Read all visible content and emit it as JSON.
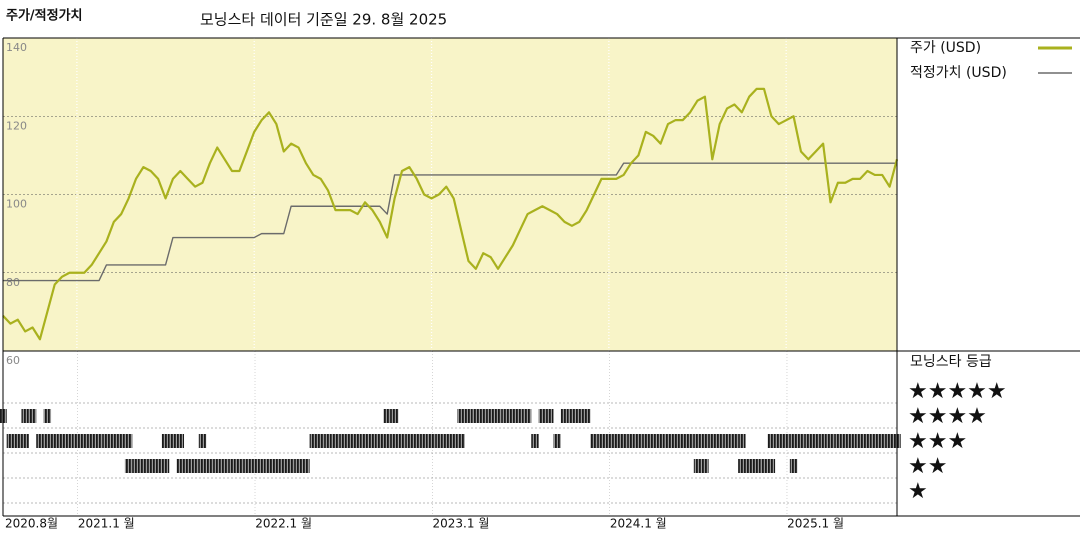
{
  "chart_data": {
    "type": "line",
    "title": "주가/적정가치",
    "subtitle": "모닝스타 데이터 기준일 29. 8월 2025",
    "categories": [
      "2020.8월",
      null,
      null,
      null,
      null,
      null,
      null,
      null,
      null,
      null,
      "2021.1 월",
      null,
      null,
      null,
      null,
      null,
      null,
      null,
      null,
      null,
      null,
      null,
      null,
      null,
      null,
      null,
      null,
      null,
      null,
      null,
      null,
      null,
      null,
      null,
      "2022.1 월",
      null,
      null,
      null,
      null,
      null,
      null,
      null,
      null,
      null,
      null,
      null,
      null,
      null,
      null,
      null,
      null,
      null,
      null,
      null,
      null,
      null,
      null,
      null,
      "2023.1 월",
      null,
      null,
      null,
      null,
      null,
      null,
      null,
      null,
      null,
      null,
      null,
      null,
      null,
      null,
      null,
      null,
      null,
      null,
      null,
      null,
      null,
      null,
      null,
      "2024.1 월",
      null,
      null,
      null,
      null,
      null,
      null,
      null,
      null,
      null,
      null,
      null,
      null,
      null,
      null,
      null,
      null,
      null,
      null,
      null,
      null,
      null,
      null,
      null,
      "2025.1 월",
      null,
      null,
      null,
      null,
      null,
      null,
      null,
      null,
      null,
      null,
      null,
      null,
      null,
      null,
      null
    ],
    "series": [
      {
        "name": "주가 (USD)",
        "color": "#a9b11e",
        "values": [
          69,
          67,
          68,
          65,
          66,
          63,
          70,
          77,
          79,
          80,
          80,
          80,
          82,
          85,
          88,
          93,
          95,
          99,
          104,
          107,
          106,
          104,
          99,
          104,
          106,
          104,
          102,
          103,
          108,
          112,
          109,
          106,
          106,
          111,
          116,
          119,
          121,
          118,
          111,
          113,
          112,
          108,
          105,
          104,
          101,
          96,
          96,
          96,
          95,
          98,
          96,
          93,
          89,
          99,
          106,
          107,
          104,
          100,
          99,
          100,
          102,
          99,
          91,
          83,
          81,
          85,
          84,
          81,
          84,
          87,
          91,
          95,
          96,
          97,
          96,
          95,
          93,
          92,
          93,
          96,
          100,
          104,
          104,
          104,
          105,
          108,
          110,
          116,
          115,
          113,
          118,
          119,
          119,
          121,
          124,
          125,
          109,
          118,
          122,
          123,
          121,
          125,
          127,
          127,
          120,
          118,
          119,
          120,
          111,
          109,
          111,
          113,
          98,
          103,
          103,
          104,
          104,
          106,
          105,
          105,
          102,
          109
        ]
      },
      {
        "name": "적정가치 (USD)",
        "color": "#6b6b6b",
        "values": [
          78,
          78,
          78,
          78,
          78,
          78,
          78,
          78,
          78,
          78,
          78,
          78,
          78,
          78,
          82,
          82,
          82,
          82,
          82,
          82,
          82,
          82,
          82,
          89,
          89,
          89,
          89,
          89,
          89,
          89,
          89,
          89,
          89,
          89,
          89,
          90,
          90,
          90,
          90,
          97,
          97,
          97,
          97,
          97,
          97,
          97,
          97,
          97,
          97,
          97,
          97,
          97,
          95,
          105,
          105,
          105,
          105,
          105,
          105,
          105,
          105,
          105,
          105,
          105,
          105,
          105,
          105,
          105,
          105,
          105,
          105,
          105,
          105,
          105,
          105,
          105,
          105,
          105,
          105,
          105,
          105,
          105,
          105,
          105,
          108,
          108,
          108,
          108,
          108,
          108,
          108,
          108,
          108,
          108,
          108,
          108,
          108,
          108,
          108,
          108,
          108,
          108,
          108,
          108,
          108,
          108,
          108,
          108,
          108,
          108,
          108,
          108,
          108,
          108,
          108,
          108,
          108,
          108,
          108,
          108,
          108,
          108
        ]
      }
    ],
    "ylim": [
      60,
      140
    ],
    "yticks": [
      60,
      80,
      100,
      120,
      140
    ],
    "grid": true,
    "background": "#f8f4c8",
    "ratings": {
      "title": "모닝스타 등급",
      "levels": [
        {
          "stars": 5,
          "label": "★★★★★"
        },
        {
          "stars": 4,
          "label": "★★★★"
        },
        {
          "stars": 3,
          "label": "★★★"
        },
        {
          "stars": 2,
          "label": "★★"
        },
        {
          "stars": 1,
          "label": "★"
        }
      ],
      "values": [
        [
          4
        ],
        [
          3
        ],
        [
          3
        ],
        [
          4,
          3
        ],
        [
          4
        ],
        [
          3
        ],
        [
          4,
          3
        ],
        [
          3
        ],
        [
          3
        ],
        [
          3
        ],
        [
          3
        ],
        [
          3
        ],
        [
          3
        ],
        [
          3
        ],
        [
          3
        ],
        [
          3
        ],
        [
          3
        ],
        [
          3,
          2
        ],
        [
          2
        ],
        [
          2
        ],
        [
          2
        ],
        [
          2
        ],
        [
          3,
          2
        ],
        [
          3
        ],
        [
          3,
          2
        ],
        [
          2
        ],
        [
          2
        ],
        [
          3,
          2
        ],
        [
          2
        ],
        [
          2
        ],
        [
          2
        ],
        [
          2
        ],
        [
          2
        ],
        [
          2
        ],
        [
          2
        ],
        [
          2
        ],
        [
          2
        ],
        [
          2
        ],
        [
          2
        ],
        [
          2
        ],
        [
          2
        ],
        [
          2
        ],
        [
          3
        ],
        [
          3
        ],
        [
          3
        ],
        [
          3
        ],
        [
          3
        ],
        [
          3
        ],
        [
          3
        ],
        [
          3
        ],
        [
          3
        ],
        [
          3
        ],
        [
          4,
          3
        ],
        [
          4,
          3
        ],
        [
          3
        ],
        [
          3
        ],
        [
          3
        ],
        [
          3
        ],
        [
          3
        ],
        [
          3
        ],
        [
          3
        ],
        [
          3
        ],
        [
          4,
          3
        ],
        [
          4
        ],
        [
          4
        ],
        [
          4
        ],
        [
          4
        ],
        [
          4
        ],
        [
          4
        ],
        [
          4
        ],
        [
          4
        ],
        [
          4
        ],
        [
          3
        ],
        [
          4
        ],
        [
          4
        ],
        [
          3
        ],
        [
          4
        ],
        [
          4
        ],
        [
          4
        ],
        [
          4
        ],
        [
          3
        ],
        [
          3
        ],
        [
          3
        ],
        [
          3
        ],
        [
          3
        ],
        [
          3
        ],
        [
          3
        ],
        [
          3
        ],
        [
          3
        ],
        [
          3
        ],
        [
          3
        ],
        [
          3
        ],
        [
          3
        ],
        [
          3
        ],
        [
          3,
          2
        ],
        [
          3,
          2
        ],
        [
          3
        ],
        [
          3
        ],
        [
          3
        ],
        [
          3
        ],
        [
          3,
          2
        ],
        [
          2
        ],
        [
          2
        ],
        [
          2
        ],
        [
          3,
          2
        ],
        [
          3
        ],
        [
          3
        ],
        [
          3,
          2
        ],
        [
          3
        ],
        [
          3
        ],
        [
          3
        ],
        [
          3
        ],
        [
          3
        ],
        [
          3
        ],
        [
          3
        ],
        [
          3
        ],
        [
          3
        ],
        [
          3
        ],
        [
          3
        ],
        [
          3
        ],
        [
          3
        ],
        [
          3
        ]
      ]
    }
  }
}
